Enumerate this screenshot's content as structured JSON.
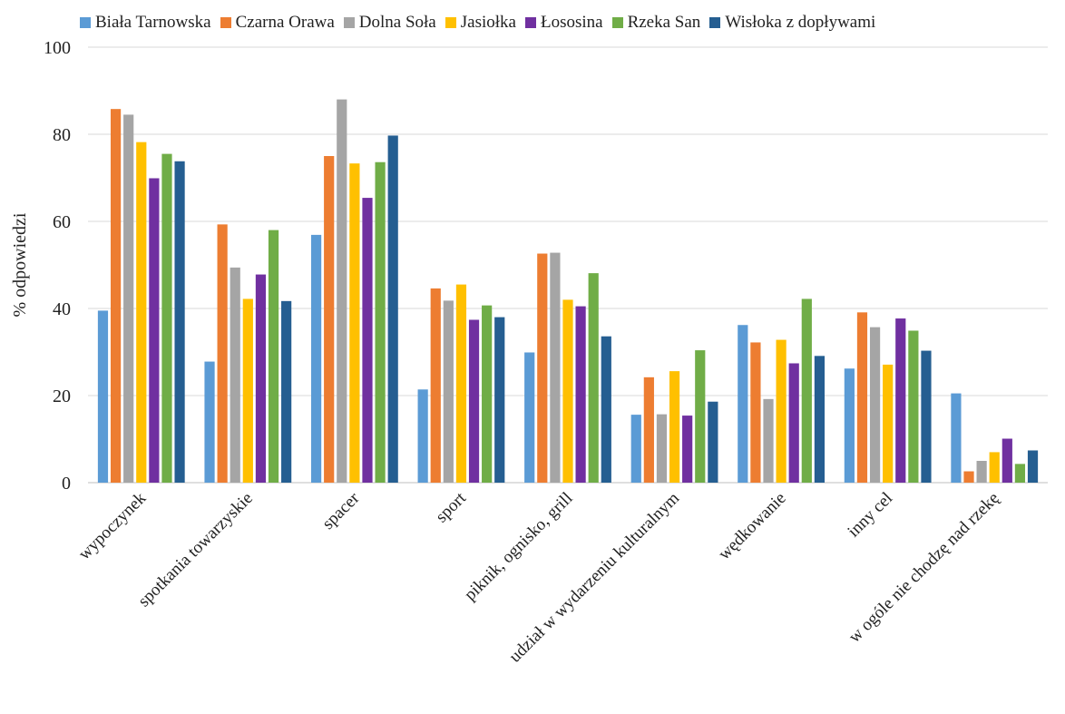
{
  "chart_data": {
    "type": "bar",
    "title": "",
    "xlabel": "",
    "ylabel": "% odpowiedzi",
    "ylim": [
      0,
      100
    ],
    "yticks": [
      0,
      20,
      40,
      60,
      80,
      100
    ],
    "grid": true,
    "legend_position": "top",
    "categories": [
      "wypoczynek",
      "spotkania towarzyskie",
      "spacer",
      "sport",
      "piknik, ognisko, grill",
      "udział w wydarzeniu kulturalnym",
      "wędkowanie",
      "inny cel",
      "w ogóle nie chodzę nad rzekę"
    ],
    "series": [
      {
        "name": "Biała Tarnowska",
        "color": "#5B9BD5",
        "values": [
          39.5,
          27.8,
          56.9,
          21.4,
          29.9,
          15.6,
          36.2,
          26.2,
          20.5
        ]
      },
      {
        "name": "Czarna Orawa",
        "color": "#ED7D31",
        "values": [
          85.8,
          59.3,
          75.0,
          44.6,
          52.6,
          24.2,
          32.2,
          39.1,
          2.6
        ]
      },
      {
        "name": "Dolna Soła",
        "color": "#A5A5A5",
        "values": [
          84.5,
          49.4,
          88.0,
          41.8,
          52.8,
          15.7,
          19.2,
          35.7,
          5.0
        ]
      },
      {
        "name": "Jasiołka",
        "color": "#FFC000",
        "values": [
          78.2,
          42.2,
          73.3,
          45.5,
          42.0,
          25.6,
          32.8,
          27.1,
          7.0
        ]
      },
      {
        "name": "Łososina",
        "color": "#7030A0",
        "values": [
          69.9,
          47.8,
          65.4,
          37.4,
          40.5,
          15.4,
          27.4,
          37.7,
          10.1
        ]
      },
      {
        "name": "Rzeka San",
        "color": "#70AD47",
        "values": [
          75.5,
          58.0,
          73.6,
          40.7,
          48.1,
          30.4,
          42.2,
          34.9,
          4.3
        ]
      },
      {
        "name": "Wisłoka z dopływami",
        "color": "#255E91",
        "values": [
          73.8,
          41.7,
          79.7,
          38.0,
          33.6,
          18.6,
          29.1,
          30.3,
          7.4
        ]
      }
    ]
  }
}
